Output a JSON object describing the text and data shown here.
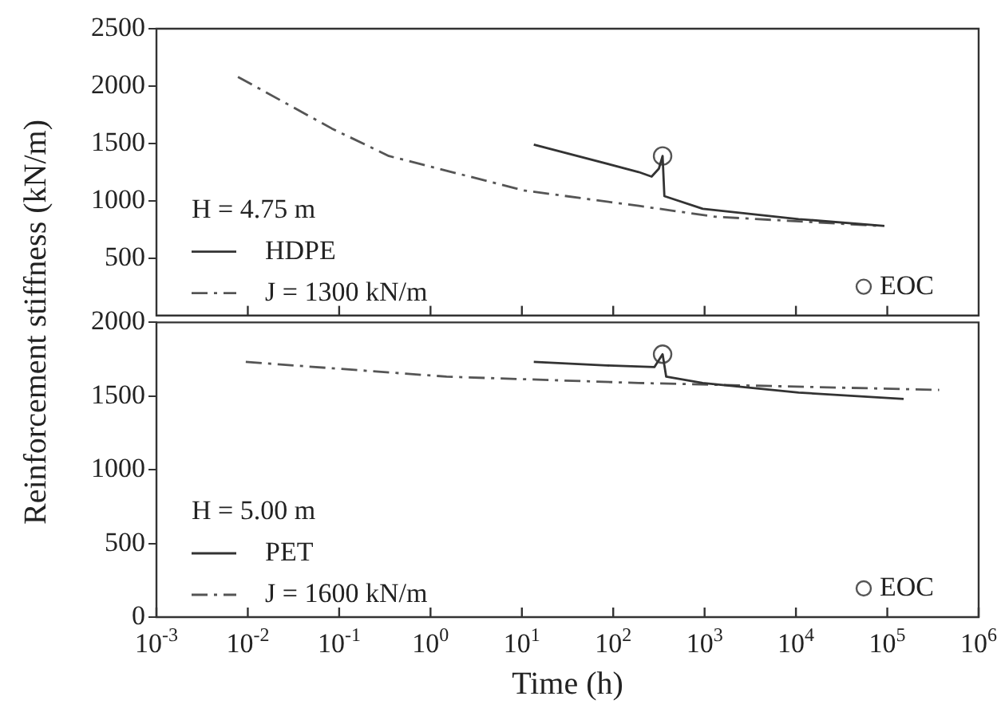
{
  "chart_data": [
    {
      "type": "line",
      "ylabel": "Reinforcement stiffness (kN/m)",
      "legend_title": "H = 4.75 m",
      "legend": "bottom left",
      "log": "x",
      "tick_labels": "y",
      "xlim": [
        0.001,
        1000000
      ],
      "xticks": [
        {
          "value": 0.01,
          "label": null
        },
        {
          "value": 0.1,
          "label": null
        },
        {
          "value": 1,
          "label": null
        },
        {
          "value": 10,
          "label": null
        },
        {
          "value": 100,
          "label": null
        },
        {
          "value": 1000,
          "label": null
        },
        {
          "value": 10000,
          "label": null
        },
        {
          "value": 100000,
          "label": null
        }
      ],
      "ylim": [
        0,
        2500
      ],
      "yticks": [
        500,
        1000,
        1500,
        2000,
        2500
      ],
      "series": [
        {
          "name": "HDPE",
          "color": "#333333",
          "line_style": "solid",
          "x": [
            13.5,
            190,
            263,
            316,
            347,
            363,
            955,
            10700,
            93000
          ],
          "values": [
            1490,
            1250,
            1210,
            1280,
            1390,
            1040,
            930,
            840,
            780
          ]
        },
        {
          "name": "J = 1300 kN/m",
          "color": "#555555",
          "line_style": "dashed",
          "x": [
            0.0078,
            0.083,
            0.35,
            10.5,
            190,
            1320,
            87000
          ],
          "values": [
            2080,
            1630,
            1390,
            1090,
            955,
            860,
            780
          ]
        },
        {
          "name": "EOC",
          "type": "scatter",
          "marker": "circle",
          "color": "#555555",
          "x": [
            347
          ],
          "values": [
            1390
          ]
        }
      ]
    },
    {
      "type": "line",
      "xlabel": "Time (h)",
      "legend_title": "H = 5.00 m",
      "legend": "bottom left",
      "log": "x",
      "xlim": [
        0.001,
        1000000
      ],
      "xticks": [
        {
          "value": 0.001,
          "label": "10$^{-3}$"
        },
        {
          "value": 0.01,
          "label": "10$^{-2}$"
        },
        {
          "value": 0.1,
          "label": "10$^{-1}$"
        },
        {
          "value": 1,
          "label": "10$^{0}$"
        },
        {
          "value": 10,
          "label": "10$^{1}$"
        },
        {
          "value": 100,
          "label": "10$^{2}$"
        },
        {
          "value": 1000,
          "label": "10$^{3}$"
        },
        {
          "value": 10000,
          "label": "10$^{4}$"
        },
        {
          "value": 100000,
          "label": "10$^{5}$"
        },
        {
          "value": 1000000,
          "label": "10$^{6}$"
        }
      ],
      "ylim": [
        0,
        2000
      ],
      "yticks": [
        0,
        500,
        1000,
        1500,
        2000
      ],
      "series": [
        {
          "name": "PET",
          "color": "#333333",
          "line_style": "solid",
          "x": [
            13.5,
            85,
            282,
            347,
            380,
            955,
            10700,
            151000
          ],
          "values": [
            1732,
            1708,
            1697,
            1784,
            1632,
            1589,
            1524,
            1481
          ]
        },
        {
          "name": "J = 1600 kN/m",
          "color": "#555555",
          "line_style": "dashed",
          "x": [
            0.0095,
            1.5,
            190,
            370000
          ],
          "values": [
            1732,
            1632,
            1589,
            1542
          ]
        },
        {
          "name": "EOC",
          "type": "scatter",
          "marker": "circle",
          "color": "#555555",
          "x": [
            347
          ],
          "values": [
            1784
          ]
        }
      ]
    }
  ]
}
